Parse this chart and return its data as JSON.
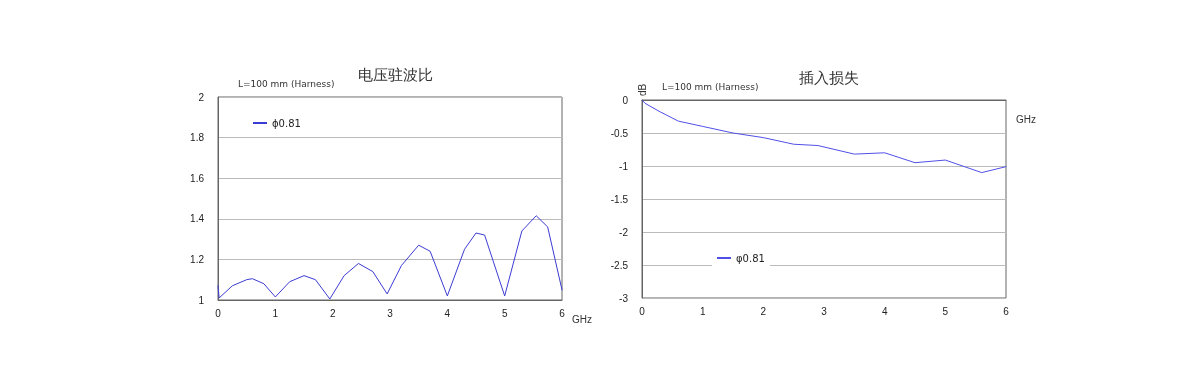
{
  "chart_data": [
    {
      "type": "line",
      "title": "电压驻波比",
      "xlabel": "GHz",
      "annotations": [
        "L=100 mm (Harness)"
      ],
      "xlim": [
        0,
        6
      ],
      "xticks": [
        0,
        1,
        2,
        3,
        4,
        5,
        6
      ],
      "ylim": [
        1,
        2
      ],
      "yticks": [
        1,
        1.2,
        1.4,
        1.6,
        1.8,
        2
      ],
      "grid": "y",
      "legend": "top left",
      "marker": "none",
      "line_style": "solid",
      "series": [
        {
          "name": "ϕ0.81",
          "color": "#3c3cd2",
          "x": [
            0,
            0.02,
            0.25,
            0.5,
            0.6,
            0.8,
            1.0,
            1.25,
            1.5,
            1.7,
            1.95,
            2.2,
            2.45,
            2.7,
            2.95,
            3.2,
            3.5,
            3.7,
            4.0,
            4.3,
            4.5,
            4.65,
            5.0,
            5.3,
            5.55,
            5.75,
            6.0
          ],
          "values": [
            1.07,
            1.01,
            1.07,
            1.1,
            1.105,
            1.08,
            1.015,
            1.09,
            1.12,
            1.1,
            1.005,
            1.12,
            1.18,
            1.14,
            1.03,
            1.17,
            1.27,
            1.24,
            1.02,
            1.25,
            1.33,
            1.32,
            1.02,
            1.34,
            1.415,
            1.36,
            1.05
          ]
        }
      ]
    },
    {
      "type": "line",
      "title": "插入损失",
      "xlabel": "GHz",
      "ylabel": "dB",
      "annotations": [
        "L=100 mm (Harness)"
      ],
      "xlim": [
        0,
        6
      ],
      "xticks": [
        0,
        1,
        2,
        3,
        4,
        5,
        6
      ],
      "ylim": [
        -3,
        0
      ],
      "yticks": [
        -3,
        -2.5,
        -2,
        -1.5,
        -1,
        -0.5,
        0
      ],
      "grid": "y",
      "legend": "bottom left",
      "marker": "none",
      "line_style": "solid",
      "series": [
        {
          "name": "φ0.81",
          "color": "#5050e6",
          "x": [
            0,
            0.05,
            0.3,
            0.6,
            1.0,
            1.5,
            2.0,
            2.5,
            2.9,
            3.5,
            4.0,
            4.5,
            5.0,
            5.6,
            6.0
          ],
          "values": [
            0,
            -0.05,
            -0.18,
            -0.32,
            -0.4,
            -0.5,
            -0.57,
            -0.67,
            -0.69,
            -0.82,
            -0.8,
            -0.95,
            -0.91,
            -1.1,
            -1.01
          ]
        }
      ]
    }
  ]
}
